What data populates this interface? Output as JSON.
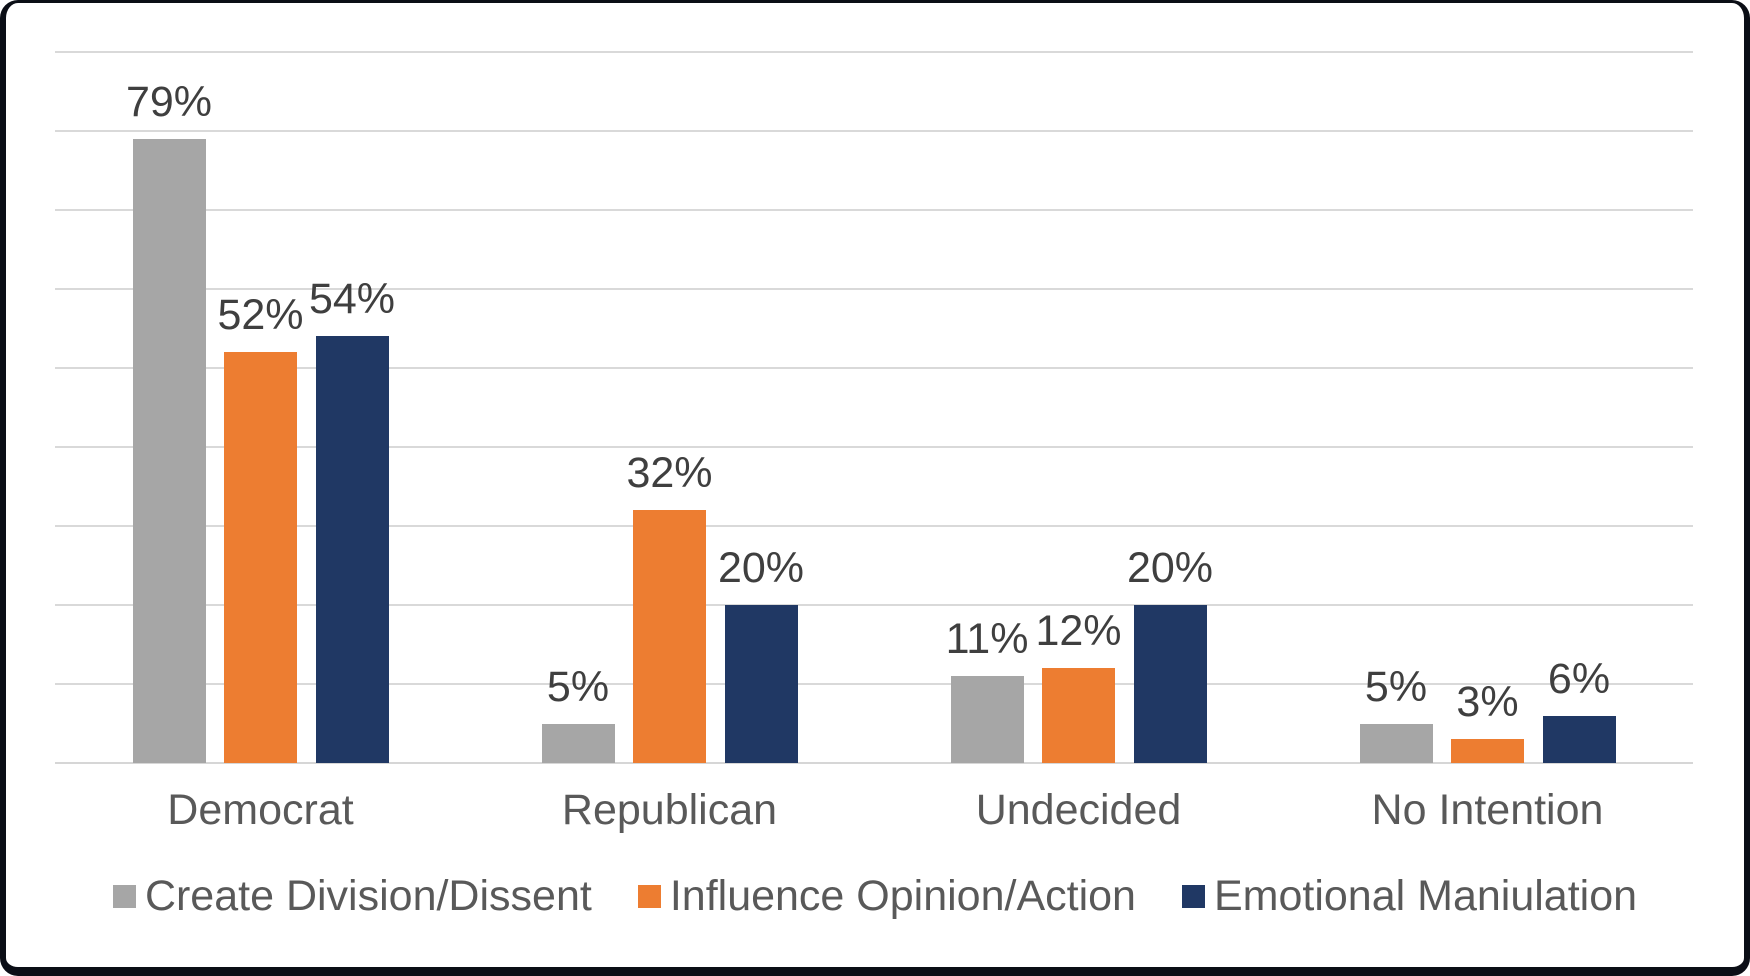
{
  "chart_data": {
    "type": "bar",
    "title": "",
    "xlabel": "",
    "ylabel": "",
    "categories": [
      "Democrat",
      "Republican",
      "Undecided",
      "No Intention"
    ],
    "series": [
      {
        "name": "Create Division/Dissent",
        "color": "#A6A6A6",
        "values": [
          79,
          5,
          11,
          5
        ]
      },
      {
        "name": "Influence Opinion/Action",
        "color": "#ED7D31",
        "values": [
          52,
          32,
          12,
          3
        ]
      },
      {
        "name": "Emotional Maniulation",
        "color": "#203864",
        "values": [
          54,
          20,
          20,
          6
        ]
      }
    ],
    "data_label_suffix": "%",
    "data_labels": "outside-end",
    "ylim": [
      0,
      90
    ],
    "gridline_step": 10,
    "grid": true,
    "y_axis_tick_labels_visible": false,
    "legend_position": "bottom"
  },
  "style_colors": {
    "gridline": "#D9D9D9",
    "axis_line": "#D6D6D6",
    "data_label_text": "#3F3F3F",
    "category_text": "#595959",
    "legend_text": "#595959",
    "card_border": "#0B0E16",
    "background": "#FFFFFF"
  }
}
